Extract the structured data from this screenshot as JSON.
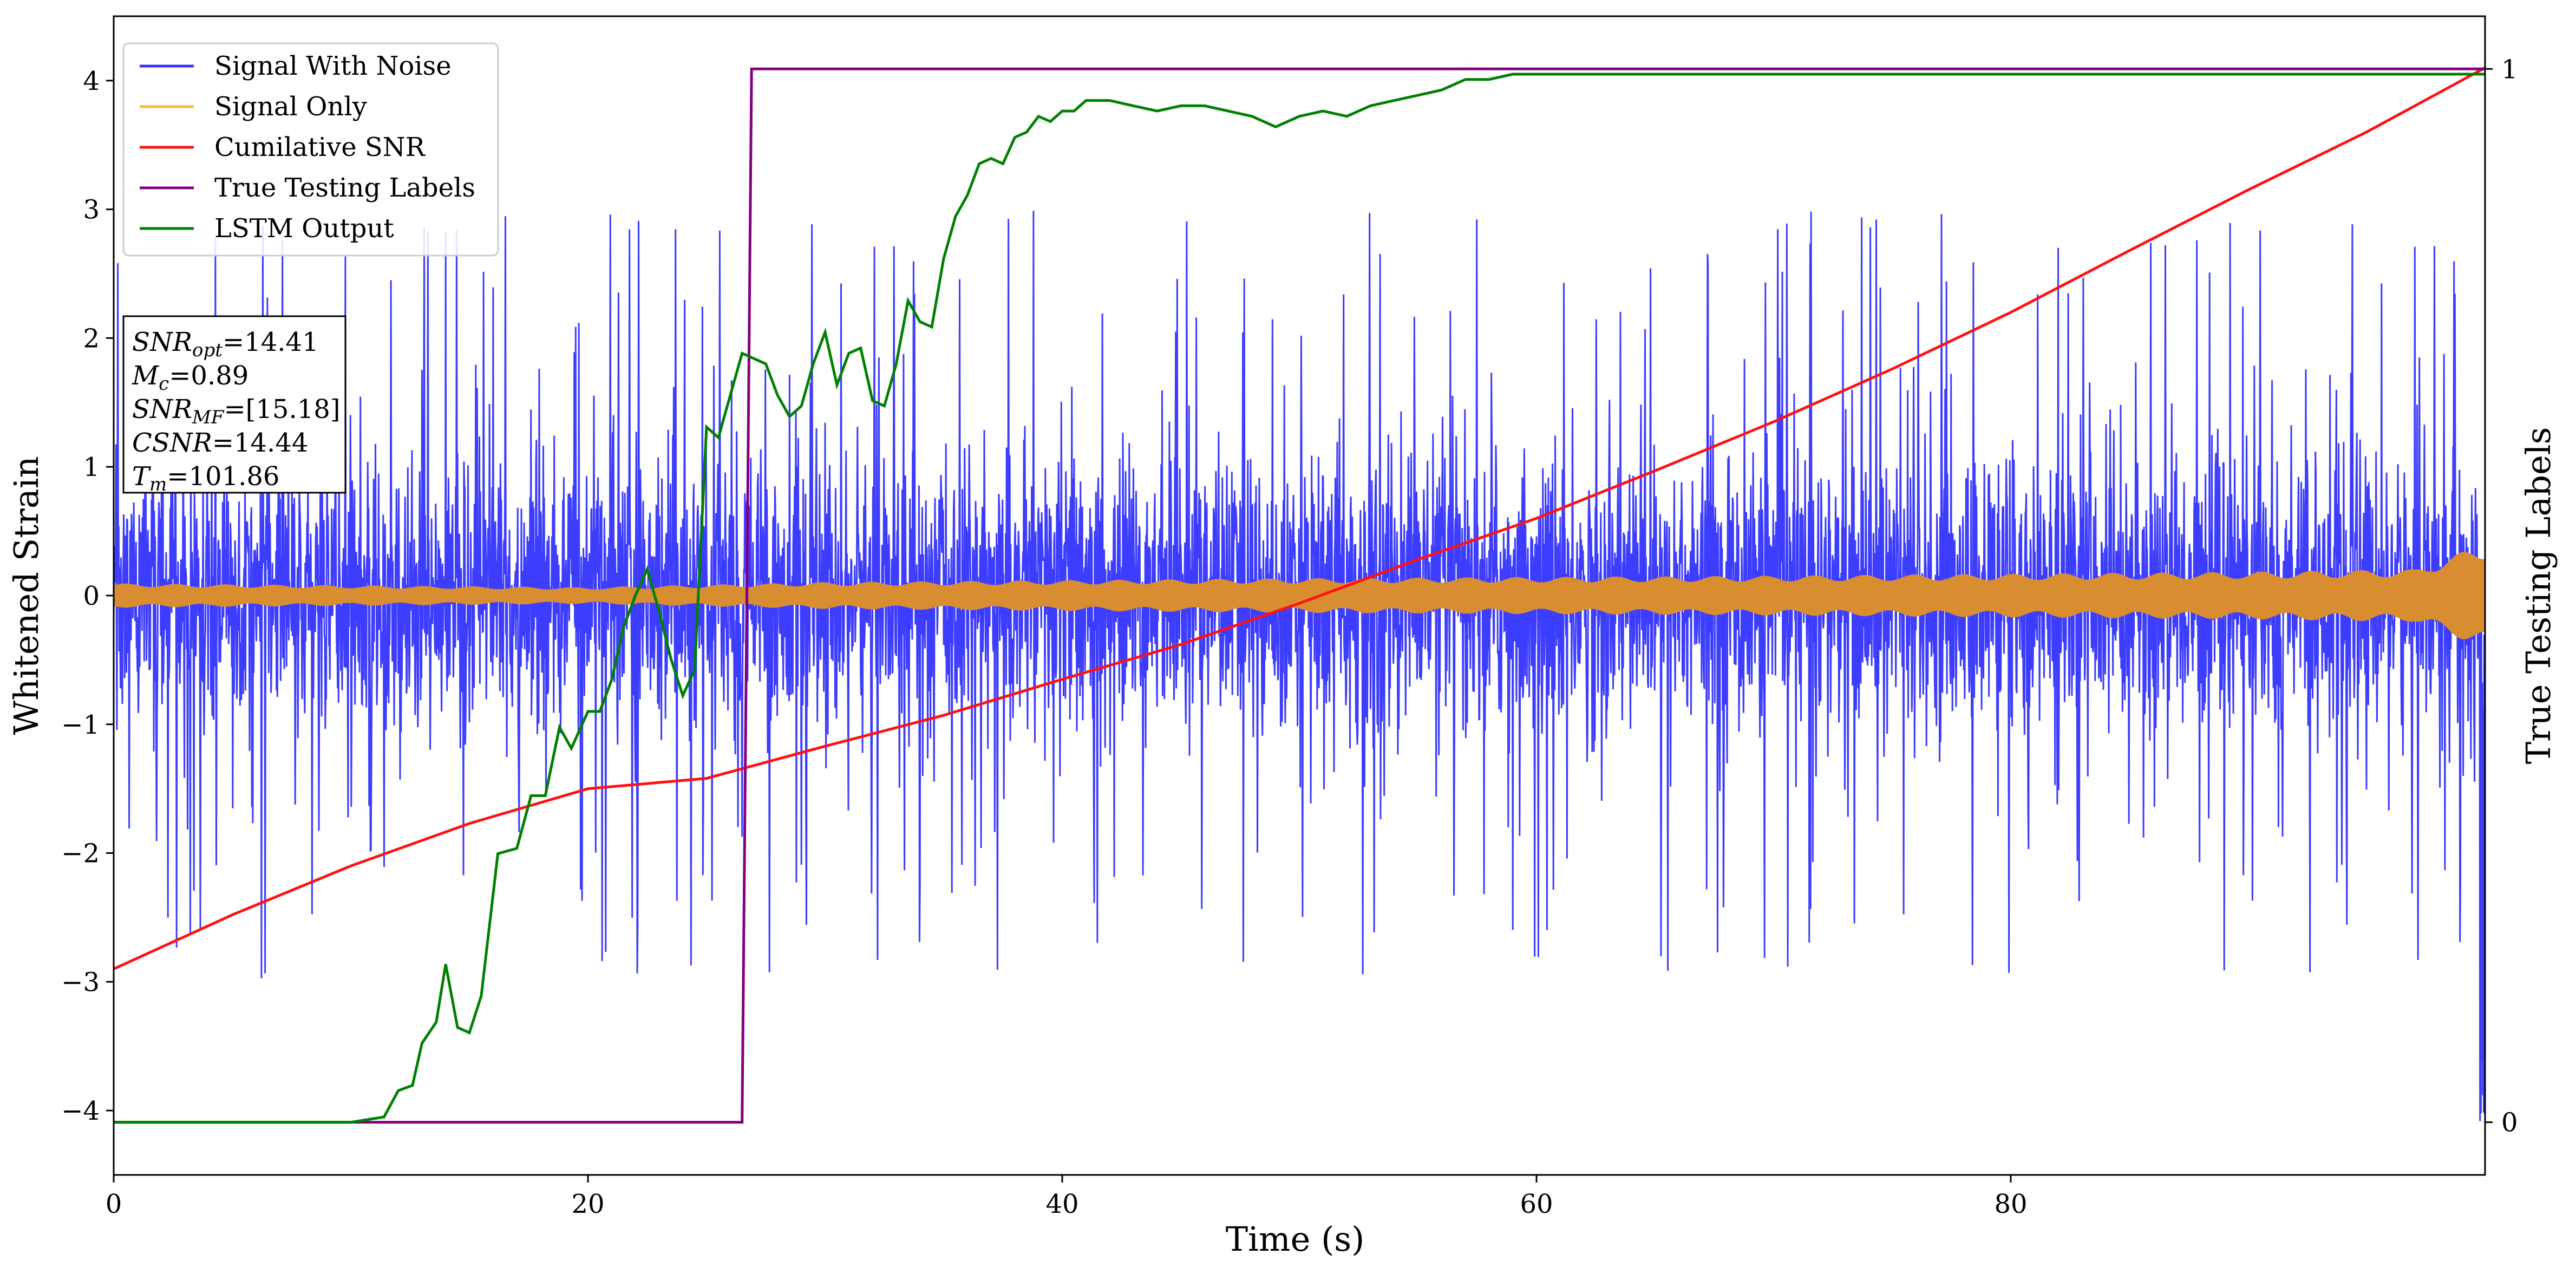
{
  "chart_data": {
    "type": "line",
    "xlabel": "Time (s)",
    "ylabel": "Whitened Strain",
    "y2label": "True Testing Labels",
    "xlim": [
      0,
      100
    ],
    "ylim": [
      -4.5,
      4.5
    ],
    "y2lim": [
      -0.05,
      1.05
    ],
    "x_ticks": [
      0,
      20,
      40,
      60,
      80
    ],
    "x_tick_labels": [
      "0",
      "20",
      "40",
      "60",
      "80"
    ],
    "y_ticks": [
      -4,
      -3,
      -2,
      -1,
      0,
      1,
      2,
      3,
      4
    ],
    "y_tick_labels": [
      "−4",
      "−3",
      "−2",
      "−1",
      "0",
      "1",
      "2",
      "3",
      "4"
    ],
    "y2_ticks": [
      0,
      1
    ],
    "y2_tick_labels": [
      "0",
      "1"
    ],
    "grid": false,
    "legend_position": "upper-left",
    "series": [
      {
        "name": "Signal With Noise",
        "color": "#3333ff",
        "axis": "left",
        "style": "noise band",
        "band": [
          -0.85,
          0.95
        ],
        "peak_range": [
          -3.1,
          3.2
        ],
        "endpoint_min": -4.1
      },
      {
        "name": "Signal Only",
        "color": "#ffb733",
        "axis": "left",
        "style": "oscillation envelope",
        "x": [
          0,
          20,
          30,
          50,
          70,
          90,
          97,
          100
        ],
        "amplitude": [
          0.09,
          0.06,
          0.1,
          0.13,
          0.15,
          0.18,
          0.2,
          0.4
        ]
      },
      {
        "name": "Cumilative SNR",
        "color": "#ff1111",
        "axis": "left",
        "x": [
          0,
          5,
          10,
          15,
          20,
          25,
          30,
          35,
          40,
          45,
          50,
          55,
          60,
          65,
          70,
          75,
          80,
          85,
          90,
          95,
          100
        ],
        "y": [
          -2.9,
          -2.48,
          -2.1,
          -1.77,
          -1.5,
          -1.42,
          -1.17,
          -0.93,
          -0.65,
          -0.38,
          -0.06,
          0.28,
          0.6,
          0.97,
          1.35,
          1.76,
          2.2,
          2.68,
          3.15,
          3.6,
          4.1
        ]
      },
      {
        "name": "True Testing Labels",
        "color": "#800080",
        "axis": "right",
        "x": [
          0,
          26.5,
          26.9,
          100
        ],
        "y": [
          0,
          0,
          1,
          1
        ]
      },
      {
        "name": "LSTM Output",
        "color": "#008000",
        "axis": "right",
        "x": [
          0,
          10,
          11.4,
          12,
          12.6,
          13,
          13.6,
          14.0,
          14.5,
          15.0,
          15.5,
          16.2,
          17.0,
          17.6,
          18.2,
          18.8,
          19.3,
          20.0,
          20.5,
          21.0,
          21.5,
          22.0,
          22.5,
          23.0,
          23.5,
          24.0,
          24.5,
          25.0,
          25.5,
          26.0,
          26.5,
          27.0,
          27.5,
          28.0,
          28.5,
          29.0,
          29.5,
          30.0,
          30.5,
          31.0,
          31.5,
          32.0,
          32.5,
          33.0,
          33.5,
          34.0,
          34.5,
          35.0,
          35.5,
          36.0,
          36.5,
          37.0,
          37.5,
          38.0,
          38.5,
          39.0,
          39.5,
          40.0,
          40.5,
          41.0,
          41.5,
          42.0,
          43.0,
          44.0,
          45.0,
          46.0,
          47.0,
          48.0,
          49.0,
          50.0,
          51.0,
          52.0,
          53.0,
          54.0,
          55.0,
          56.0,
          57.0,
          58.0,
          59.0,
          60.0,
          62.0,
          64.0,
          66.0,
          70.0,
          75.0,
          80.0,
          85.0,
          90.0,
          95.0,
          100.0
        ],
        "y": [
          0,
          0,
          0.005,
          0.03,
          0.035,
          0.075,
          0.095,
          0.15,
          0.09,
          0.085,
          0.12,
          0.255,
          0.26,
          0.31,
          0.31,
          0.375,
          0.355,
          0.39,
          0.39,
          0.42,
          0.47,
          0.5,
          0.525,
          0.485,
          0.44,
          0.405,
          0.43,
          0.66,
          0.65,
          0.69,
          0.73,
          0.725,
          0.72,
          0.69,
          0.67,
          0.68,
          0.72,
          0.75,
          0.7,
          0.73,
          0.735,
          0.685,
          0.68,
          0.72,
          0.78,
          0.76,
          0.755,
          0.82,
          0.86,
          0.88,
          0.91,
          0.915,
          0.91,
          0.935,
          0.94,
          0.955,
          0.95,
          0.96,
          0.96,
          0.97,
          0.97,
          0.97,
          0.965,
          0.96,
          0.965,
          0.965,
          0.96,
          0.955,
          0.945,
          0.955,
          0.96,
          0.955,
          0.965,
          0.97,
          0.975,
          0.98,
          0.99,
          0.99,
          0.995,
          0.995,
          0.995,
          0.995,
          0.995,
          0.995,
          0.995,
          0.995,
          0.995,
          0.995,
          0.995,
          0.995
        ]
      }
    ],
    "annotation": {
      "lines": [
        {
          "key": "SNR",
          "sub": "opt",
          "value": "=14.41"
        },
        {
          "key": "M",
          "sub": "c",
          "value": "=0.89"
        },
        {
          "key": "SNR",
          "sub": "MF",
          "value": "=[15.18]"
        },
        {
          "key": "CSNR",
          "sub": "",
          "value": "=14.44"
        },
        {
          "key": "T",
          "sub": "m",
          "value": "=101.86"
        }
      ]
    }
  }
}
